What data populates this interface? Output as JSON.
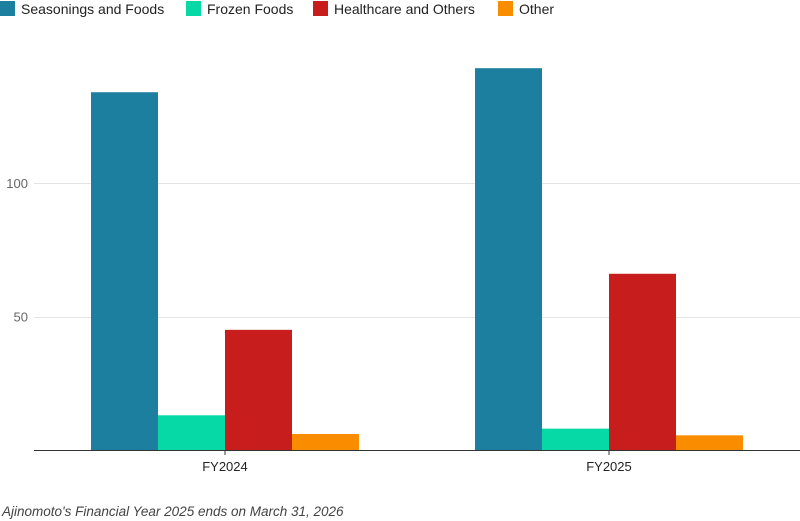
{
  "chart_data": {
    "type": "bar",
    "categories": [
      "FY2024",
      "FY2025"
    ],
    "series": [
      {
        "name": "Seasonings and Foods",
        "color": "#1d7fa0",
        "values": [
          134,
          143
        ]
      },
      {
        "name": "Frozen Foods",
        "color": "#06d9a5",
        "values": [
          13,
          8
        ]
      },
      {
        "name": "Healthcare and Others",
        "color": "#c71e1d",
        "values": [
          45,
          66
        ]
      },
      {
        "name": "Other",
        "color": "#fa8c00",
        "values": [
          6,
          5.5
        ]
      }
    ],
    "yticks": [
      50,
      100
    ],
    "ylim": [
      0,
      160
    ],
    "grid": true,
    "legend_position": "top-left",
    "title": "",
    "xlabel": "",
    "ylabel": ""
  },
  "footnote": "Ajinomoto's Financial Year 2025 ends on March 31, 2026"
}
